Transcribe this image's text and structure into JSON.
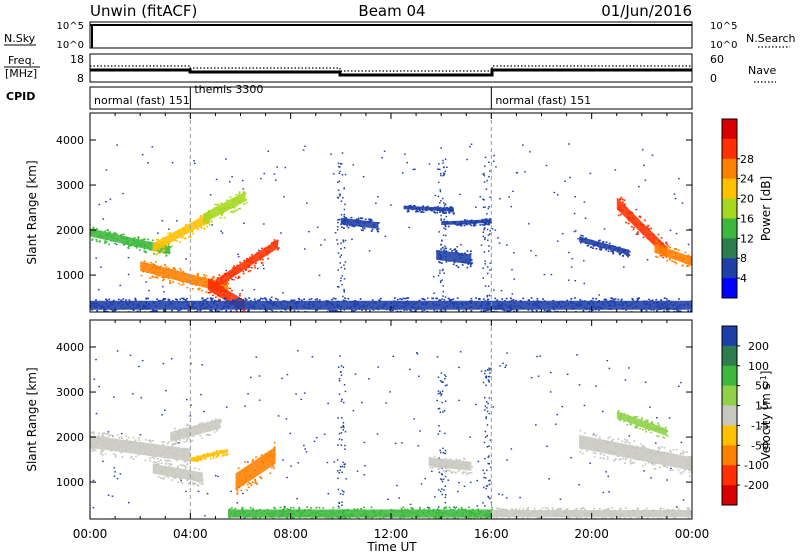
{
  "header": {
    "station": "Unwin (fitACF)",
    "beam": "Beam 04",
    "date": "01/Jun/2016"
  },
  "top_panels": {
    "nsky": {
      "label": "N.Sky",
      "ticks": [
        "10^5",
        "10^0"
      ]
    },
    "nsearch": {
      "label": "N.Search",
      "ticks": [
        "10^5",
        "10^0"
      ]
    },
    "freq": {
      "label_line1": "Freq.",
      "label_line2": "[MHz]",
      "ticks": [
        "18",
        "8"
      ]
    },
    "nave": {
      "label": "Nave",
      "ticks": [
        "60",
        "0"
      ]
    },
    "cpid": {
      "label": "CPID",
      "segments": [
        {
          "name": "normal (fast) 151",
          "start": 0
        },
        {
          "name": "themis 3300",
          "start": 4
        },
        {
          "name": "normal (fast) 151",
          "start": 16
        }
      ]
    }
  },
  "chart_data": [
    {
      "type": "heatmap",
      "name": "power",
      "ylabel": "Slant Range [km]",
      "xlim": [
        0,
        24
      ],
      "ylim": [
        180,
        4600
      ],
      "yticks": [
        1000,
        2000,
        3000,
        4000
      ],
      "colorbar": {
        "label": "Power [dB]",
        "ticks": [
          "4",
          "8",
          "12",
          "16",
          "20",
          "24",
          "28"
        ],
        "colors": [
          "#0000ff",
          "#1f3fa8",
          "#2e7d4e",
          "#3cb83c",
          "#a6d81e",
          "#ffc000",
          "#ff7f00",
          "#ff3000",
          "#d80000"
        ]
      },
      "features": [
        {
          "label": "band",
          "t0": 0.0,
          "t1": 3.2,
          "r0": 1950,
          "r1": 1550,
          "w": 180,
          "color": "#3cb83c"
        },
        {
          "label": "band",
          "t0": 2.5,
          "t1": 4.8,
          "r0": 1600,
          "r1": 2300,
          "w": 200,
          "color": "#ffc000"
        },
        {
          "label": "band",
          "t0": 4.5,
          "t1": 6.2,
          "r0": 2250,
          "r1": 2750,
          "w": 220,
          "color": "#a6d81e"
        },
        {
          "label": "band",
          "t0": 2.0,
          "t1": 5.5,
          "r0": 1200,
          "r1": 700,
          "w": 220,
          "color": "#ff7f00"
        },
        {
          "label": "band",
          "t0": 5.0,
          "t1": 7.5,
          "r0": 800,
          "r1": 1700,
          "w": 200,
          "color": "#ff3000"
        },
        {
          "label": "band",
          "t0": 4.7,
          "t1": 6.2,
          "r0": 800,
          "r1": 300,
          "w": 260,
          "color": "#ff3000"
        },
        {
          "label": "patch",
          "t0": 10.0,
          "t1": 11.5,
          "r0": 2200,
          "r1": 2100,
          "w": 150,
          "color": "#1f3fa8"
        },
        {
          "label": "patch",
          "t0": 12.5,
          "t1": 14.5,
          "r0": 2500,
          "r1": 2450,
          "w": 80,
          "color": "#1f3fa8"
        },
        {
          "label": "patch",
          "t0": 13.8,
          "t1": 15.2,
          "r0": 1450,
          "r1": 1350,
          "w": 220,
          "color": "#1f3fa8"
        },
        {
          "label": "patch",
          "t0": 14.0,
          "t1": 16.0,
          "r0": 2150,
          "r1": 2200,
          "w": 80,
          "color": "#1f3fa8"
        },
        {
          "label": "ground",
          "t0": 0.0,
          "t1": 24.0,
          "r0": 330,
          "r1": 330,
          "w": 200,
          "color": "#1f3fa8"
        },
        {
          "label": "band",
          "t0": 21.0,
          "t1": 23.0,
          "r0": 2600,
          "r1": 1500,
          "w": 260,
          "color": "#ff3000"
        },
        {
          "label": "band",
          "t0": 22.5,
          "t1": 24.0,
          "r0": 1600,
          "r1": 1300,
          "w": 200,
          "color": "#ff7f00"
        },
        {
          "label": "band",
          "t0": 19.5,
          "t1": 21.5,
          "r0": 1800,
          "r1": 1500,
          "w": 120,
          "color": "#1f3fa8"
        }
      ]
    },
    {
      "type": "heatmap",
      "name": "velocity",
      "ylabel": "Slant Range [km]",
      "xlabel": "Time UT",
      "xlim": [
        0,
        24
      ],
      "ylim": [
        180,
        4600
      ],
      "yticks": [
        1000,
        2000,
        3000,
        4000
      ],
      "xticks": [
        "00:00",
        "04:00",
        "08:00",
        "12:00",
        "16:00",
        "20:00",
        "00:00"
      ],
      "colorbar": {
        "label": "Velocity [m s",
        "label_sup": "-1",
        "label_end": "]",
        "ticks": [
          "200",
          "100",
          "50",
          "15",
          "-15",
          "-50",
          "-100",
          "-200"
        ],
        "colors": [
          "#1f3fa8",
          "#2e7d4e",
          "#3cb83c",
          "#8fd24a",
          "#c8c8c0",
          "#ffc000",
          "#ff7f00",
          "#ff3000",
          "#d80000"
        ]
      },
      "features": [
        {
          "label": "ground",
          "t0": 0.0,
          "t1": 4.0,
          "r0": 1900,
          "r1": 1600,
          "w": 280,
          "color": "#c8c8c0"
        },
        {
          "label": "ground",
          "t0": 2.5,
          "t1": 4.5,
          "r0": 1300,
          "r1": 1100,
          "w": 220,
          "color": "#c8c8c0"
        },
        {
          "label": "ground",
          "t0": 3.2,
          "t1": 5.2,
          "r0": 2000,
          "r1": 2300,
          "w": 220,
          "color": "#c8c8c0"
        },
        {
          "label": "flow",
          "t0": 5.8,
          "t1": 7.4,
          "r0": 1000,
          "r1": 1600,
          "w": 380,
          "color": "#ff7f00"
        },
        {
          "label": "flow",
          "t0": 4.0,
          "t1": 5.5,
          "r0": 1500,
          "r1": 1700,
          "w": 80,
          "color": "#ffc000"
        },
        {
          "label": "patch",
          "t0": 13.5,
          "t1": 15.2,
          "r0": 1450,
          "r1": 1350,
          "w": 200,
          "color": "#c8c8c0"
        },
        {
          "label": "ground",
          "t0": 5.5,
          "t1": 16.0,
          "r0": 300,
          "r1": 300,
          "w": 180,
          "color": "#3cb83c"
        },
        {
          "label": "ground",
          "t0": 16.0,
          "t1": 24.0,
          "r0": 300,
          "r1": 300,
          "w": 160,
          "color": "#c8c8c0"
        },
        {
          "label": "ground",
          "t0": 19.5,
          "t1": 24.0,
          "r0": 1900,
          "r1": 1400,
          "w": 300,
          "color": "#c8c8c0"
        },
        {
          "label": "flow",
          "t0": 21.0,
          "t1": 23.0,
          "r0": 2500,
          "r1": 2100,
          "w": 160,
          "color": "#8fd24a"
        }
      ]
    }
  ]
}
